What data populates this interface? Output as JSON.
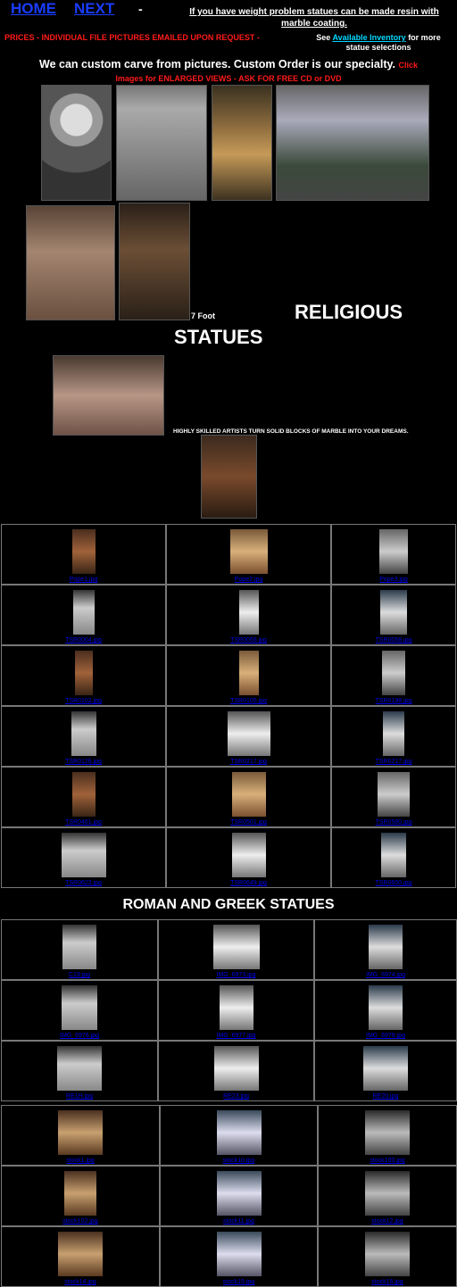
{
  "nav": {
    "home_label": "HOME",
    "next_label": "NEXT",
    "separator": "-"
  },
  "header_note": "If you have weight problem statues can be made resin with marble coating.",
  "prices_line": "PRICES - INDIVIDUAL FILE PICTURES  EMAILED UPON REQUEST -",
  "inventory": {
    "prefix": "See",
    "link": "Available Inventory",
    "suffix": "for more statue selections"
  },
  "custom_line": "We can custom carve from pictures.  Custom Order is our specialty.",
  "click_line": "Click",
  "enlarge_line": "Images for ENLARGED  VIEWS   -    ASK FOR FREE CD or DVD",
  "label_7ft": "7 Foot",
  "religious_title": "RELIGIOUS",
  "religious_title2": "STATUES",
  "skilled_text": "HIGHLY SKILLED ARTISTS TURN SOLID BLOCKS OF MARBLE INTO YOUR  DREAMS.",
  "religious_captions": [
    "Pope1.jpg",
    "Pope2.jpg",
    "Pope3.jpg",
    "TSR0004.jpg",
    "TSR0056.jpg",
    "TSR0058.jpg",
    "TSR0102.jpg",
    "TSR0105.jpg",
    "TSR0198.jpg",
    "TSR0126.jpg",
    "TSR0217.jpg",
    "TSR0217.jpg",
    "TSR0461.jpg",
    "TSR0501.jpg",
    "TSR0580.jpg",
    "TSR0623.jpg",
    "TSR0649.jpg",
    "TSR0650.jpg"
  ],
  "roman_title": "ROMAN AND GREEK STATUES",
  "roman_captions": [
    "C19.jpg",
    "IMG_6973.jpg",
    "IMG_6974.jpg",
    "IMG_6976.jpg",
    "IMG_6977.jpg",
    "IMG_6978.jpg",
    "RE1H.jpg",
    "RE23.jpg",
    "RE20.jpg"
  ],
  "stock_captions": [
    "stock1.jpg",
    "stock10.jpg",
    "stock100.jpg",
    "stock102.jpg",
    "stock11.jpg",
    "stock12.jpg",
    "stock14.jpg",
    "stock15.jpg",
    "stock16.jpg"
  ]
}
